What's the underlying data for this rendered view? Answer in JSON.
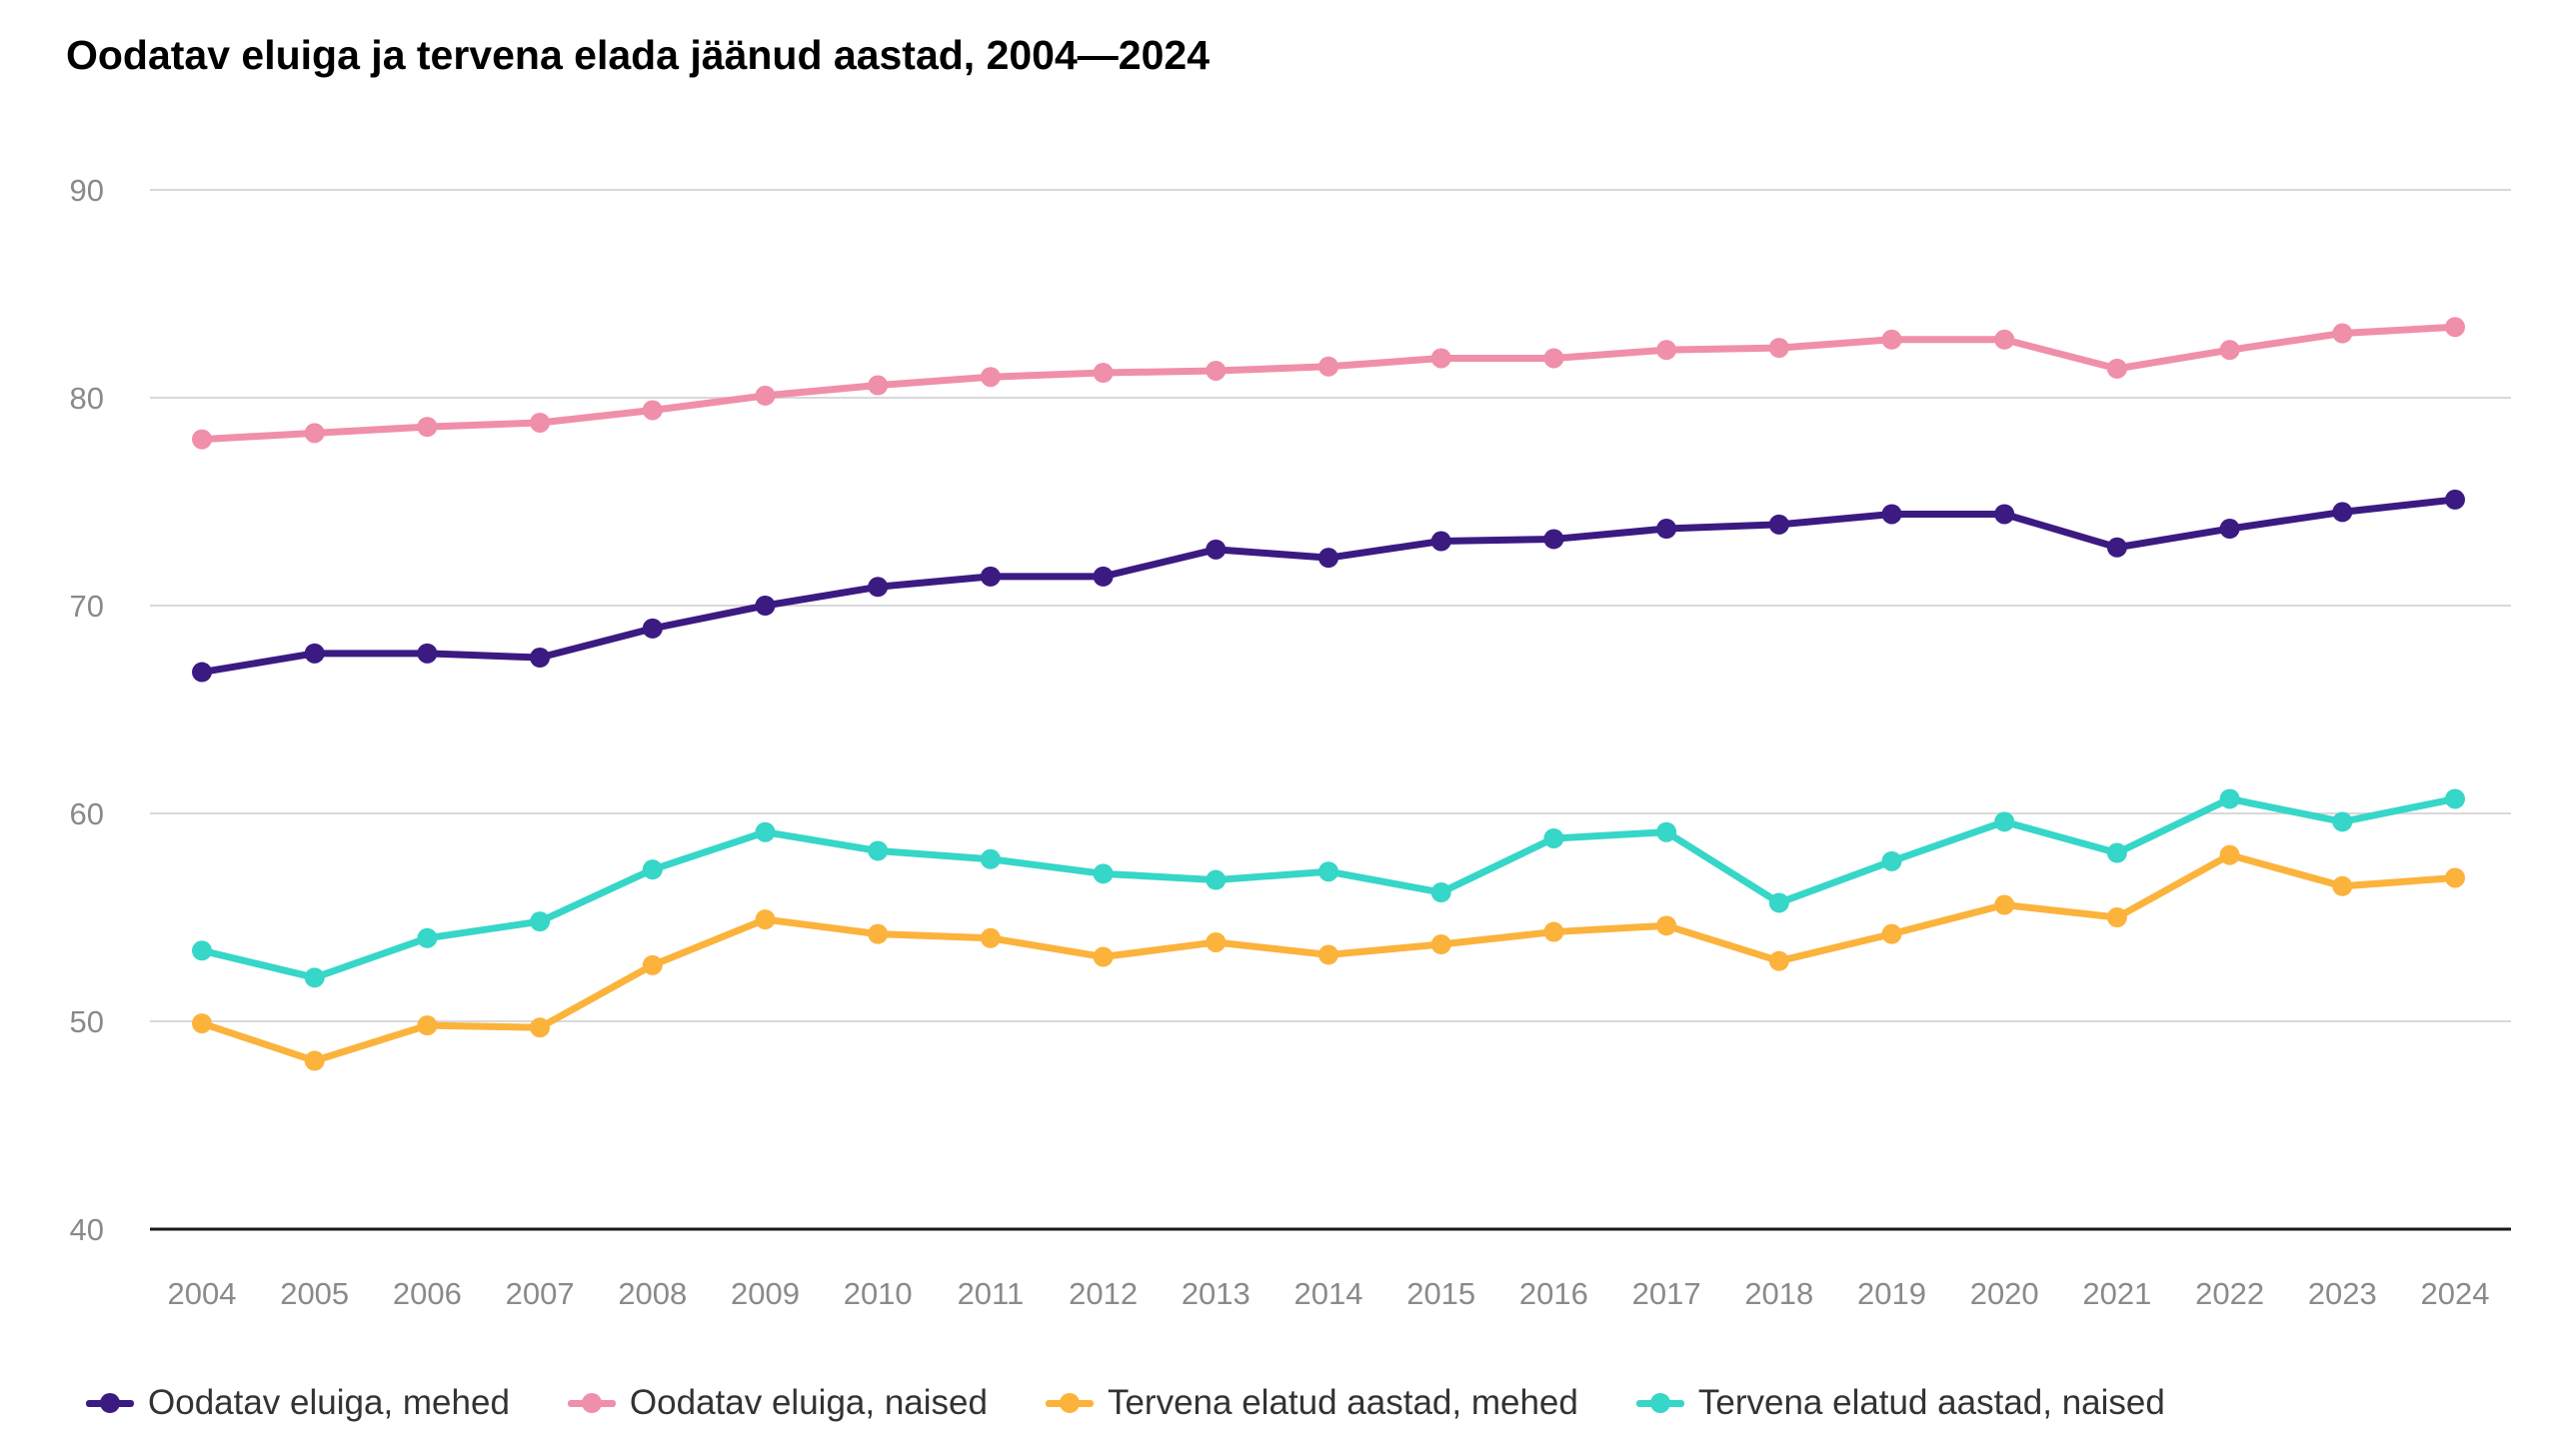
{
  "chart_data": {
    "type": "line",
    "title": "Oodatav eluiga ja tervena elada jäänud aastad, 2004—2024",
    "xlabel": "",
    "ylabel": "",
    "ylim": [
      40,
      90
    ],
    "yticks": [
      40,
      50,
      60,
      70,
      80,
      90
    ],
    "grid": true,
    "legend_position": "bottom",
    "categories": [
      "2004",
      "2005",
      "2006",
      "2007",
      "2008",
      "2009",
      "2010",
      "2011",
      "2012",
      "2013",
      "2014",
      "2015",
      "2016",
      "2017",
      "2018",
      "2019",
      "2020",
      "2021",
      "2022",
      "2023",
      "2024"
    ],
    "series": [
      {
        "name": "Oodatav eluiga, mehed",
        "color": "#3b1b82",
        "values": [
          66.8,
          67.7,
          67.7,
          67.5,
          68.9,
          70.0,
          70.9,
          71.4,
          71.4,
          72.7,
          72.3,
          73.1,
          73.2,
          73.7,
          73.9,
          74.4,
          74.4,
          72.8,
          73.7,
          74.5,
          75.1
        ]
      },
      {
        "name": "Oodatav eluiga, naised",
        "color": "#f08fa9",
        "values": [
          78.0,
          78.3,
          78.6,
          78.8,
          79.4,
          80.1,
          80.6,
          81.0,
          81.2,
          81.3,
          81.5,
          81.9,
          81.9,
          82.3,
          82.4,
          82.8,
          82.8,
          81.4,
          82.3,
          83.1,
          83.4
        ]
      },
      {
        "name": "Tervena elatud aastad, mehed",
        "color": "#fbb33c",
        "values": [
          49.9,
          48.1,
          49.8,
          49.7,
          52.7,
          54.9,
          54.2,
          54.0,
          53.1,
          53.8,
          53.2,
          53.7,
          54.3,
          54.6,
          52.9,
          54.2,
          55.6,
          55.0,
          58.0,
          56.5,
          56.9
        ]
      },
      {
        "name": "Tervena elatud aastad, naised",
        "color": "#36d6c8",
        "values": [
          53.4,
          52.1,
          54.0,
          54.8,
          57.3,
          59.1,
          58.2,
          57.8,
          57.1,
          56.8,
          57.2,
          56.2,
          58.8,
          59.1,
          55.7,
          57.7,
          59.6,
          58.1,
          60.7,
          59.6,
          60.7
        ]
      }
    ]
  }
}
